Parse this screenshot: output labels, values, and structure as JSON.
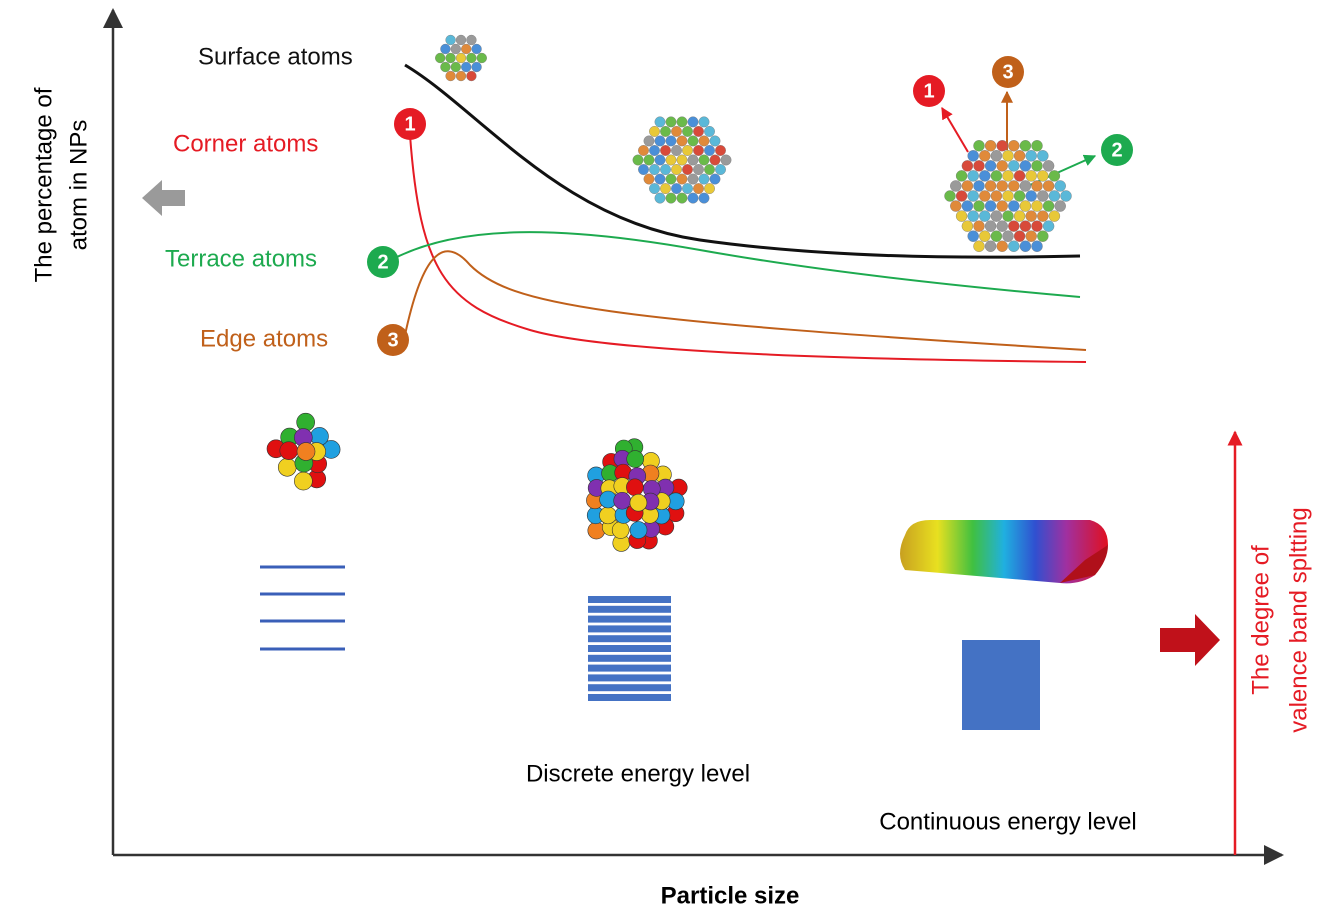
{
  "axes": {
    "y_label": [
      "The percentage of",
      "atom in NPs"
    ],
    "x_label": "Particle size",
    "y2_label": [
      "The degree of",
      "valence band spltting"
    ]
  },
  "curves": [
    {
      "label": "Surface atoms"
    },
    {
      "label": "Corner atoms",
      "badge": "1"
    },
    {
      "label": "Terrace atoms",
      "badge": "2"
    },
    {
      "label": "Edge atoms",
      "badge": "3"
    }
  ],
  "cluster_arrows": [
    "1",
    "3",
    "2"
  ],
  "energy_levels": {
    "discrete": "Discrete energy level",
    "continuous": "Continuous energy level"
  }
}
